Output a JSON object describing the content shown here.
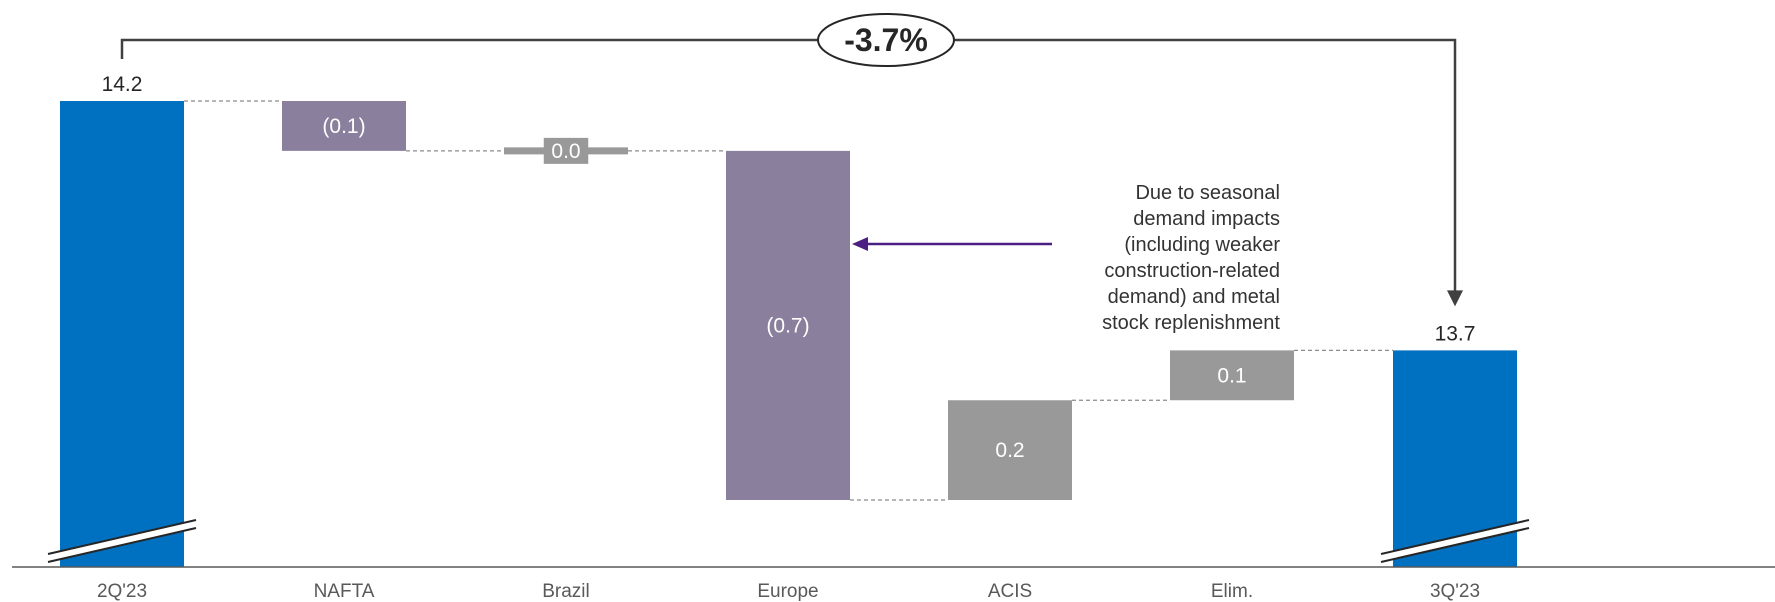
{
  "chart_data": {
    "type": "bar",
    "subtype": "waterfall",
    "categories": [
      "2Q'23",
      "NAFTA",
      "Brazil",
      "Europe",
      "ACIS",
      "Elim.",
      "3Q'23"
    ],
    "values": [
      14.2,
      -0.1,
      0.0,
      -0.7,
      0.2,
      0.1,
      13.7
    ],
    "kinds": [
      "total",
      "delta",
      "delta",
      "delta",
      "delta",
      "delta",
      "total"
    ],
    "data_labels": [
      "14.2",
      "(0.1)",
      "0.0",
      "(0.7)",
      "0.2",
      "0.1",
      "13.7"
    ],
    "change_label": "-3.7%",
    "axis_break": true,
    "legend": "none",
    "grid": false,
    "annotation": {
      "target": "Europe",
      "lines": [
        "Due to seasonal",
        "demand impacts",
        "(including weaker",
        "construction-related",
        "demand) and metal",
        "stock replenishment"
      ]
    },
    "colors": {
      "total": "#0070c0",
      "decrease": "#8a7f9c",
      "increase": "#999999",
      "arrow": "#4b1f82",
      "bracket": "#404040",
      "connector": "#8c8c8c"
    }
  }
}
